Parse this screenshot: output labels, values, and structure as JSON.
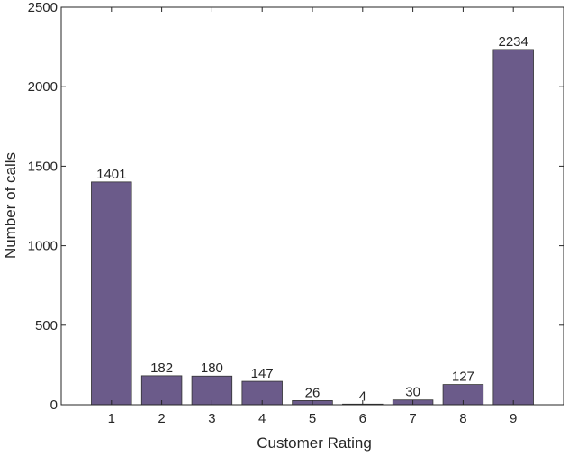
{
  "chart_data": {
    "type": "bar",
    "categories": [
      "1",
      "2",
      "3",
      "4",
      "5",
      "6",
      "7",
      "8",
      "9"
    ],
    "values": [
      1401,
      182,
      180,
      147,
      26,
      4,
      30,
      127,
      2234
    ],
    "data_labels": [
      "1401",
      "182",
      "180",
      "147",
      "26",
      "4",
      "30",
      "127",
      "2234"
    ],
    "title": "",
    "xlabel": "Customer Rating",
    "ylabel": "Number of calls",
    "ylim": [
      0,
      2500
    ],
    "yticks": [
      0,
      500,
      1000,
      1500,
      2000,
      2500
    ],
    "ytick_labels": [
      "0",
      "500",
      "1000",
      "1500",
      "2000",
      "2500"
    ],
    "grid": false,
    "legend": "none",
    "bar_color": "#6b5b8a",
    "bar_edge_color": "#333333",
    "axis_color": "#262626",
    "label_color": "#262626"
  }
}
